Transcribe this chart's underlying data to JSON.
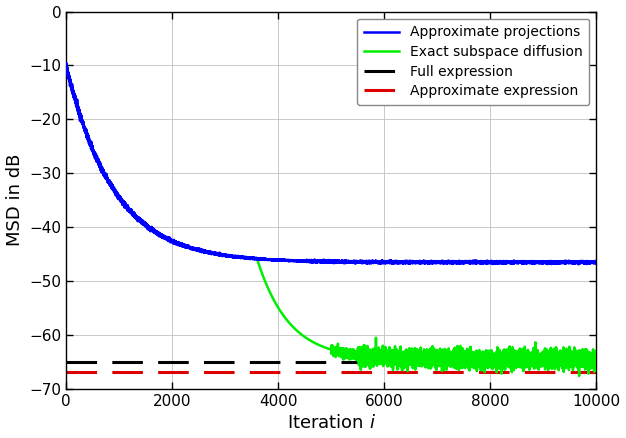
{
  "title": "",
  "xlabel": "Iteration $i$",
  "ylabel": "MSD in dB",
  "xlim": [
    0,
    10000
  ],
  "ylim": [
    -70,
    0
  ],
  "yticks": [
    0,
    -10,
    -20,
    -30,
    -40,
    -50,
    -60,
    -70
  ],
  "xticks": [
    0,
    2000,
    4000,
    6000,
    8000,
    10000
  ],
  "blue_start": -10.0,
  "blue_steady_state": -46.5,
  "blue_tau": 900.0,
  "blue_diverge_iter": 3600,
  "green_start": -10.0,
  "green_floor": -64.5,
  "green_tau1": 900.0,
  "green_diverge_iter": 3600,
  "green_tau2": 600.0,
  "black_dashed_level": -65.0,
  "red_dashed_level": -66.8,
  "legend_labels": [
    "Approximate projections",
    "Exact subspace diffusion",
    "Full expression",
    "Approximate expression"
  ],
  "line_colors": [
    "#0000ff",
    "#00ee00",
    "#000000",
    "#dd0000"
  ],
  "figsize": [
    6.26,
    4.38
  ],
  "dpi": 100
}
